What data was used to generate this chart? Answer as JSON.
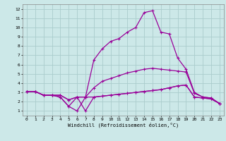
{
  "bg_color": "#cce8e8",
  "grid_color": "#aacccc",
  "line_color": "#990099",
  "xlabel": "Windchill (Refroidissement éolien,°C)",
  "xlim": [
    -0.5,
    23.5
  ],
  "ylim": [
    0.5,
    12.5
  ],
  "xticks": [
    0,
    1,
    2,
    3,
    4,
    5,
    6,
    7,
    8,
    9,
    10,
    11,
    12,
    13,
    14,
    15,
    16,
    17,
    18,
    19,
    20,
    21,
    22,
    23
  ],
  "yticks": [
    1,
    2,
    3,
    4,
    5,
    6,
    7,
    8,
    9,
    10,
    11,
    12
  ],
  "series1_x": [
    0,
    1,
    2,
    3,
    4,
    5,
    6,
    7,
    8,
    9,
    10,
    11,
    12,
    13,
    14,
    15,
    16,
    17,
    18,
    19,
    20,
    21,
    22,
    23
  ],
  "series1_y": [
    3.1,
    3.1,
    2.7,
    2.7,
    2.7,
    2.2,
    2.5,
    2.5,
    3.5,
    4.2,
    4.5,
    4.8,
    5.1,
    5.3,
    5.5,
    5.6,
    5.5,
    5.4,
    5.3,
    5.2,
    2.9,
    2.5,
    2.4,
    1.8
  ],
  "series2_x": [
    0,
    1,
    2,
    3,
    4,
    5,
    6,
    7,
    8,
    9,
    10,
    11,
    12,
    13,
    14,
    15,
    16,
    17,
    18,
    19,
    20,
    21,
    22,
    23
  ],
  "series2_y": [
    3.1,
    3.1,
    2.7,
    2.7,
    2.5,
    1.5,
    1.0,
    2.5,
    6.5,
    7.7,
    8.5,
    8.8,
    9.5,
    10.0,
    11.6,
    11.8,
    9.5,
    9.3,
    6.7,
    5.5,
    3.0,
    2.5,
    2.4,
    1.8
  ],
  "series3_x": [
    0,
    1,
    2,
    3,
    4,
    5,
    6,
    7,
    8,
    9,
    10,
    11,
    12,
    13,
    14,
    15,
    16,
    17,
    18,
    19,
    20,
    21,
    22,
    23
  ],
  "series3_y": [
    3.1,
    3.1,
    2.7,
    2.7,
    2.7,
    2.2,
    2.5,
    2.5,
    2.5,
    2.6,
    2.7,
    2.8,
    2.9,
    3.0,
    3.1,
    3.2,
    3.3,
    3.5,
    3.7,
    3.8,
    2.5,
    2.4,
    2.3,
    1.8
  ],
  "series4_x": [
    0,
    1,
    2,
    3,
    4,
    5,
    6,
    7,
    8,
    9,
    10,
    11,
    12,
    13,
    14,
    15,
    16,
    17,
    18,
    19,
    20,
    21,
    22,
    23
  ],
  "series4_y": [
    3.1,
    3.1,
    2.7,
    2.7,
    2.5,
    1.5,
    2.5,
    1.0,
    2.5,
    2.6,
    2.7,
    2.8,
    2.9,
    3.0,
    3.1,
    3.2,
    3.3,
    3.5,
    3.7,
    3.8,
    2.5,
    2.4,
    2.3,
    1.8
  ]
}
